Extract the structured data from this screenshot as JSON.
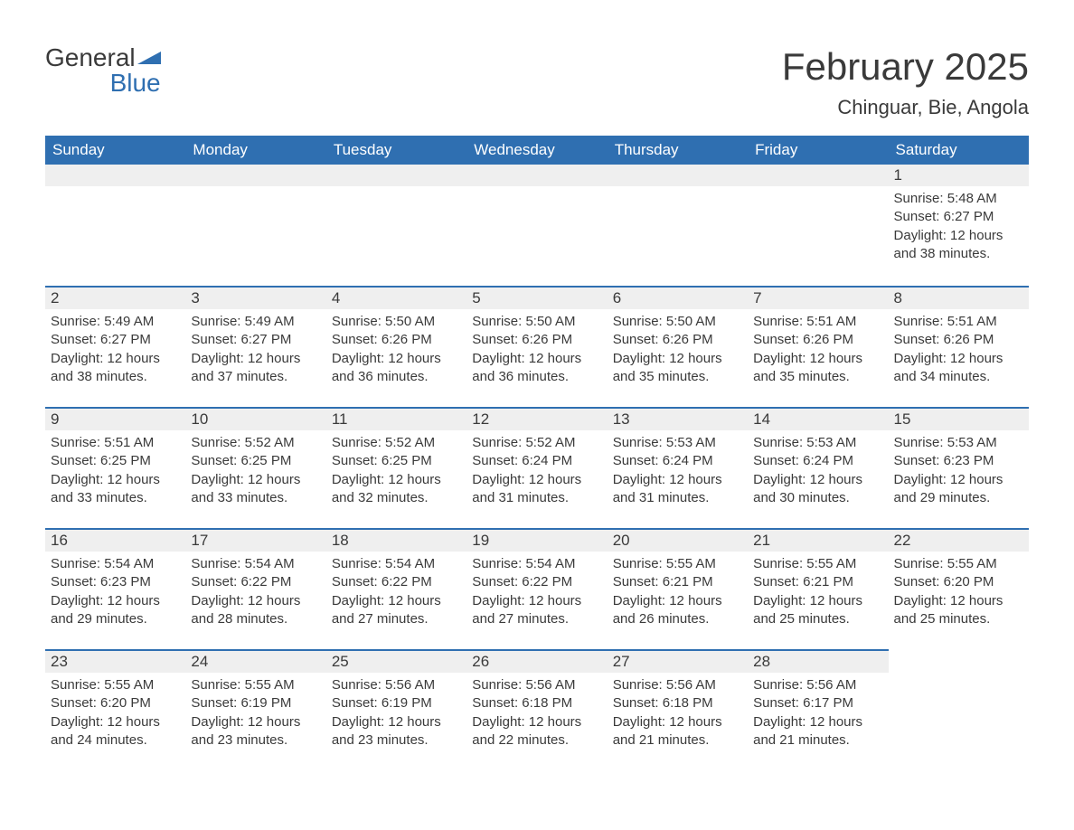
{
  "brand": {
    "part1": "General",
    "part2": "Blue"
  },
  "title": "February 2025",
  "location": "Chinguar, Bie, Angola",
  "colors": {
    "header_bg": "#2f6fb1",
    "header_text": "#ffffff",
    "daynum_bg": "#efefef",
    "row_divider": "#2f6fb1",
    "body_text": "#3a3a3a",
    "page_bg": "#ffffff"
  },
  "typography": {
    "title_fontsize": 42,
    "location_fontsize": 22,
    "header_fontsize": 17,
    "body_fontsize": 15
  },
  "layout": {
    "columns": 7,
    "body_rows": 5,
    "first_weekday": "Sunday",
    "leading_blanks": 6
  },
  "weekdays": [
    "Sunday",
    "Monday",
    "Tuesday",
    "Wednesday",
    "Thursday",
    "Friday",
    "Saturday"
  ],
  "labels": {
    "sunrise": "Sunrise",
    "sunset": "Sunset",
    "daylight": "Daylight"
  },
  "days": [
    {
      "n": 1,
      "sunrise": "5:48 AM",
      "sunset": "6:27 PM",
      "daylight": "12 hours and 38 minutes."
    },
    {
      "n": 2,
      "sunrise": "5:49 AM",
      "sunset": "6:27 PM",
      "daylight": "12 hours and 38 minutes."
    },
    {
      "n": 3,
      "sunrise": "5:49 AM",
      "sunset": "6:27 PM",
      "daylight": "12 hours and 37 minutes."
    },
    {
      "n": 4,
      "sunrise": "5:50 AM",
      "sunset": "6:26 PM",
      "daylight": "12 hours and 36 minutes."
    },
    {
      "n": 5,
      "sunrise": "5:50 AM",
      "sunset": "6:26 PM",
      "daylight": "12 hours and 36 minutes."
    },
    {
      "n": 6,
      "sunrise": "5:50 AM",
      "sunset": "6:26 PM",
      "daylight": "12 hours and 35 minutes."
    },
    {
      "n": 7,
      "sunrise": "5:51 AM",
      "sunset": "6:26 PM",
      "daylight": "12 hours and 35 minutes."
    },
    {
      "n": 8,
      "sunrise": "5:51 AM",
      "sunset": "6:26 PM",
      "daylight": "12 hours and 34 minutes."
    },
    {
      "n": 9,
      "sunrise": "5:51 AM",
      "sunset": "6:25 PM",
      "daylight": "12 hours and 33 minutes."
    },
    {
      "n": 10,
      "sunrise": "5:52 AM",
      "sunset": "6:25 PM",
      "daylight": "12 hours and 33 minutes."
    },
    {
      "n": 11,
      "sunrise": "5:52 AM",
      "sunset": "6:25 PM",
      "daylight": "12 hours and 32 minutes."
    },
    {
      "n": 12,
      "sunrise": "5:52 AM",
      "sunset": "6:24 PM",
      "daylight": "12 hours and 31 minutes."
    },
    {
      "n": 13,
      "sunrise": "5:53 AM",
      "sunset": "6:24 PM",
      "daylight": "12 hours and 31 minutes."
    },
    {
      "n": 14,
      "sunrise": "5:53 AM",
      "sunset": "6:24 PM",
      "daylight": "12 hours and 30 minutes."
    },
    {
      "n": 15,
      "sunrise": "5:53 AM",
      "sunset": "6:23 PM",
      "daylight": "12 hours and 29 minutes."
    },
    {
      "n": 16,
      "sunrise": "5:54 AM",
      "sunset": "6:23 PM",
      "daylight": "12 hours and 29 minutes."
    },
    {
      "n": 17,
      "sunrise": "5:54 AM",
      "sunset": "6:22 PM",
      "daylight": "12 hours and 28 minutes."
    },
    {
      "n": 18,
      "sunrise": "5:54 AM",
      "sunset": "6:22 PM",
      "daylight": "12 hours and 27 minutes."
    },
    {
      "n": 19,
      "sunrise": "5:54 AM",
      "sunset": "6:22 PM",
      "daylight": "12 hours and 27 minutes."
    },
    {
      "n": 20,
      "sunrise": "5:55 AM",
      "sunset": "6:21 PM",
      "daylight": "12 hours and 26 minutes."
    },
    {
      "n": 21,
      "sunrise": "5:55 AM",
      "sunset": "6:21 PM",
      "daylight": "12 hours and 25 minutes."
    },
    {
      "n": 22,
      "sunrise": "5:55 AM",
      "sunset": "6:20 PM",
      "daylight": "12 hours and 25 minutes."
    },
    {
      "n": 23,
      "sunrise": "5:55 AM",
      "sunset": "6:20 PM",
      "daylight": "12 hours and 24 minutes."
    },
    {
      "n": 24,
      "sunrise": "5:55 AM",
      "sunset": "6:19 PM",
      "daylight": "12 hours and 23 minutes."
    },
    {
      "n": 25,
      "sunrise": "5:56 AM",
      "sunset": "6:19 PM",
      "daylight": "12 hours and 23 minutes."
    },
    {
      "n": 26,
      "sunrise": "5:56 AM",
      "sunset": "6:18 PM",
      "daylight": "12 hours and 22 minutes."
    },
    {
      "n": 27,
      "sunrise": "5:56 AM",
      "sunset": "6:18 PM",
      "daylight": "12 hours and 21 minutes."
    },
    {
      "n": 28,
      "sunrise": "5:56 AM",
      "sunset": "6:17 PM",
      "daylight": "12 hours and 21 minutes."
    }
  ]
}
